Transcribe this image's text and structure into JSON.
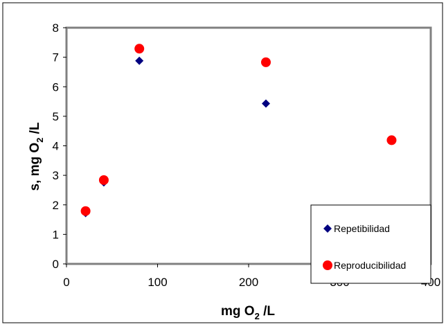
{
  "chart_data": {
    "type": "scatter",
    "title": "",
    "xlabel": "mg O",
    "xlabel_sub": "2",
    "xlabel_suffix": " /L",
    "ylabel": "s, mg O",
    "ylabel_sub": "2",
    "ylabel_suffix": " /L",
    "xlim": [
      0,
      400
    ],
    "ylim": [
      0,
      8
    ],
    "x_ticks": [
      0,
      100,
      200,
      300,
      400
    ],
    "y_ticks": [
      0,
      1,
      2,
      3,
      4,
      5,
      6,
      7,
      8
    ],
    "grid": false,
    "legend_position": "bottom-right",
    "series": [
      {
        "name": "Repetibilidad",
        "marker": "diamond",
        "color": "#000080",
        "points": [
          {
            "x": 21,
            "y": 1.72
          },
          {
            "x": 41,
            "y": 2.76
          },
          {
            "x": 80,
            "y": 6.88
          },
          {
            "x": 219,
            "y": 5.43
          },
          {
            "x": 357,
            "y": 4.17
          }
        ]
      },
      {
        "name": "Reproducibilidad",
        "marker": "circle",
        "color": "#ff0000",
        "points": [
          {
            "x": 21,
            "y": 1.79
          },
          {
            "x": 41,
            "y": 2.84
          },
          {
            "x": 80,
            "y": 7.29
          },
          {
            "x": 219,
            "y": 6.83
          },
          {
            "x": 357,
            "y": 4.19
          }
        ]
      }
    ]
  }
}
